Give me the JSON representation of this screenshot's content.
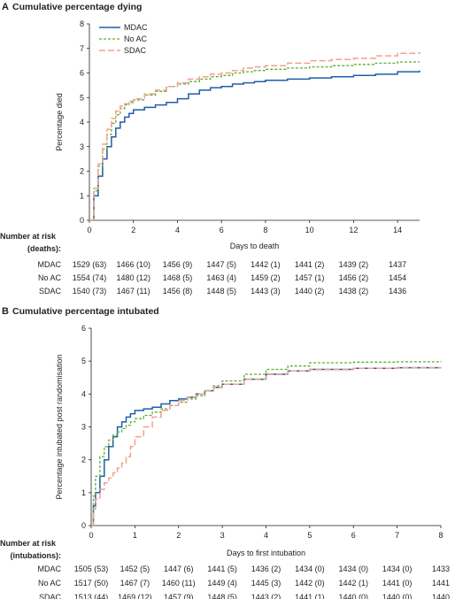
{
  "colors": {
    "MDAC": "#1f5ea8",
    "No AC": "#5ab033",
    "SDAC": "#f4a08c"
  },
  "panels": [
    {
      "letter": "A",
      "title": "Cumulative percentage dying",
      "risk_header": [
        "Number at risk",
        "(deaths):"
      ],
      "chart_data": {
        "type": "line",
        "step": true,
        "xlabel": "Days to death",
        "ylabel": "Percentage died",
        "xlim": [
          0,
          15
        ],
        "ylim": [
          0,
          8
        ],
        "xticks": [
          0,
          2,
          4,
          6,
          8,
          10,
          12,
          14
        ],
        "yticks": [
          0,
          1,
          2,
          3,
          4,
          5,
          6,
          7,
          8
        ],
        "legend_position": "top-left",
        "series": [
          {
            "name": "MDAC",
            "style": "solid",
            "x": [
              0,
              0.2,
              0.4,
              0.6,
              0.8,
              1.0,
              1.2,
              1.4,
              1.6,
              1.8,
              2.0,
              2.5,
              3.0,
              3.5,
              4.0,
              4.5,
              5.0,
              5.5,
              6.0,
              6.5,
              7.0,
              7.5,
              8.0,
              9.0,
              10.0,
              11.0,
              12.0,
              13.0,
              14.0,
              15.0
            ],
            "y": [
              0,
              1.0,
              1.8,
              2.5,
              3.0,
              3.4,
              3.75,
              4.0,
              4.2,
              4.35,
              4.5,
              4.6,
              4.7,
              4.8,
              4.95,
              5.15,
              5.3,
              5.4,
              5.45,
              5.55,
              5.6,
              5.65,
              5.7,
              5.75,
              5.8,
              5.85,
              5.9,
              5.95,
              6.05,
              6.1
            ]
          },
          {
            "name": "No AC",
            "style": "dashed",
            "x": [
              0,
              0.2,
              0.4,
              0.6,
              0.8,
              1.0,
              1.2,
              1.4,
              1.6,
              1.8,
              2.0,
              2.5,
              3.0,
              3.5,
              4.0,
              4.5,
              5.0,
              5.5,
              6.0,
              6.5,
              7.0,
              7.5,
              8.0,
              9.0,
              10.0,
              11.0,
              12.0,
              13.0,
              14.0,
              15.0
            ],
            "y": [
              0,
              1.2,
              2.2,
              2.9,
              3.5,
              3.95,
              4.3,
              4.55,
              4.7,
              4.8,
              4.9,
              5.1,
              5.25,
              5.45,
              5.55,
              5.65,
              5.75,
              5.85,
              5.9,
              6.0,
              6.05,
              6.1,
              6.15,
              6.2,
              6.25,
              6.3,
              6.35,
              6.4,
              6.45,
              6.45
            ]
          },
          {
            "name": "SDAC",
            "style": "longdash",
            "x": [
              0,
              0.2,
              0.4,
              0.6,
              0.8,
              1.0,
              1.2,
              1.4,
              1.6,
              1.8,
              2.0,
              2.5,
              3.0,
              3.5,
              4.0,
              4.5,
              5.0,
              5.5,
              6.0,
              6.5,
              7.0,
              7.5,
              8.0,
              9.0,
              10.0,
              11.0,
              12.0,
              13.0,
              14.0,
              15.0
            ],
            "y": [
              0,
              1.3,
              2.3,
              3.1,
              3.7,
              4.15,
              4.45,
              4.65,
              4.75,
              4.85,
              4.95,
              5.15,
              5.3,
              5.45,
              5.6,
              5.75,
              5.85,
              5.95,
              6.0,
              6.1,
              6.2,
              6.25,
              6.3,
              6.4,
              6.5,
              6.55,
              6.6,
              6.7,
              6.8,
              6.85
            ]
          }
        ]
      },
      "risk_table": {
        "times": [
          0,
          2,
          4,
          6,
          8,
          10,
          12,
          14
        ],
        "rows": [
          {
            "arm": "MDAC",
            "cells": [
              "1529 (63)",
              "1466 (10)",
              "1456 (9)",
              "1447 (5)",
              "1442 (1)",
              "1441 (2)",
              "1439 (2)",
              "1437"
            ]
          },
          {
            "arm": "No AC",
            "cells": [
              "1554 (74)",
              "1480 (12)",
              "1468 (5)",
              "1463 (4)",
              "1459 (2)",
              "1457 (1)",
              "1456 (2)",
              "1454"
            ]
          },
          {
            "arm": "SDAC",
            "cells": [
              "1540 (73)",
              "1467 (11)",
              "1456 (8)",
              "1448 (5)",
              "1443 (3)",
              "1440 (2)",
              "1438 (2)",
              "1436"
            ]
          }
        ]
      }
    },
    {
      "letter": "B",
      "title": "Cumulative percentage intubated",
      "risk_header": [
        "Number at risk",
        "(intubations):"
      ],
      "chart_data": {
        "type": "line",
        "step": true,
        "xlabel": "Days to first intubation",
        "ylabel": "Percentage intubated post randomisation",
        "xlim": [
          0,
          8
        ],
        "ylim": [
          0,
          6
        ],
        "xticks": [
          0,
          1,
          2,
          3,
          4,
          5,
          6,
          7,
          8
        ],
        "yticks": [
          0,
          1,
          2,
          3,
          4,
          5,
          6
        ],
        "series": [
          {
            "name": "MDAC",
            "style": "solid",
            "x": [
              0,
              0.05,
              0.1,
              0.2,
              0.3,
              0.4,
              0.5,
              0.6,
              0.7,
              0.8,
              0.9,
              1.0,
              1.2,
              1.4,
              1.6,
              1.8,
              2.0,
              2.2,
              2.4,
              2.6,
              2.8,
              3.0,
              3.5,
              4.0,
              4.5,
              5.0,
              6.0,
              7.0,
              8.0
            ],
            "y": [
              0,
              0.6,
              1.0,
              1.5,
              2.0,
              2.4,
              2.7,
              3.0,
              3.15,
              3.3,
              3.4,
              3.5,
              3.55,
              3.6,
              3.7,
              3.8,
              3.85,
              3.9,
              4.0,
              4.1,
              4.2,
              4.3,
              4.45,
              4.6,
              4.7,
              4.75,
              4.78,
              4.8,
              4.8
            ]
          },
          {
            "name": "No AC",
            "style": "dashed",
            "x": [
              0,
              0.05,
              0.1,
              0.2,
              0.3,
              0.4,
              0.5,
              0.6,
              0.7,
              0.8,
              0.9,
              1.0,
              1.2,
              1.4,
              1.6,
              1.8,
              2.0,
              2.2,
              2.4,
              2.6,
              2.8,
              3.0,
              3.5,
              4.0,
              4.5,
              5.0,
              6.0,
              7.0,
              8.0
            ],
            "y": [
              0,
              0.9,
              1.5,
              2.1,
              2.4,
              2.6,
              2.75,
              2.85,
              2.95,
              3.05,
              3.15,
              3.25,
              3.35,
              3.45,
              3.55,
              3.65,
              3.75,
              3.85,
              3.95,
              4.1,
              4.25,
              4.4,
              4.6,
              4.75,
              4.85,
              4.95,
              4.97,
              4.98,
              5.0
            ]
          },
          {
            "name": "SDAC",
            "style": "longdash",
            "x": [
              0,
              0.05,
              0.1,
              0.2,
              0.3,
              0.4,
              0.5,
              0.6,
              0.7,
              0.8,
              0.9,
              1.0,
              1.2,
              1.4,
              1.6,
              1.8,
              2.0,
              2.2,
              2.4,
              2.6,
              2.8,
              3.0,
              3.5,
              4.0,
              4.5,
              5.0,
              6.0,
              7.0,
              8.0
            ],
            "y": [
              0,
              0.5,
              0.8,
              1.1,
              1.3,
              1.45,
              1.6,
              1.75,
              1.9,
              2.1,
              2.4,
              2.7,
              3.0,
              3.3,
              3.5,
              3.65,
              3.8,
              3.9,
              4.0,
              4.1,
              4.2,
              4.3,
              4.45,
              4.6,
              4.7,
              4.75,
              4.78,
              4.8,
              4.82
            ]
          }
        ]
      },
      "risk_table": {
        "times": [
          0,
          1,
          2,
          3,
          4,
          5,
          6,
          7,
          8
        ],
        "rows": [
          {
            "arm": "MDAC",
            "cells": [
              "1505 (53)",
              "1452 (5)",
              "1447 (6)",
              "1441 (5)",
              "1436 (2)",
              "1434 (0)",
              "1434 (0)",
              "1434 (0)",
              "1433"
            ]
          },
          {
            "arm": "No AC",
            "cells": [
              "1517 (50)",
              "1467 (7)",
              "1460 (11)",
              "1449 (4)",
              "1445 (3)",
              "1442 (0)",
              "1442 (1)",
              "1441 (0)",
              "1441"
            ]
          },
          {
            "arm": "SDAC",
            "cells": [
              "1513 (44)",
              "1469 (12)",
              "1457 (9)",
              "1448 (5)",
              "1443 (2)",
              "1441 (1)",
              "1440 (0)",
              "1440 (0)",
              "1440"
            ]
          }
        ]
      }
    }
  ]
}
